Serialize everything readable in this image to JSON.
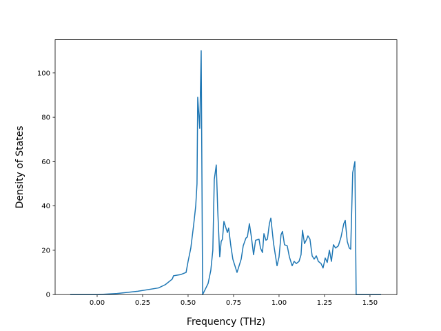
{
  "chart_data": {
    "type": "line",
    "xlabel": "Frequency (THz)",
    "ylabel": "Density of States",
    "x": [
      -0.148,
      0,
      0.11,
      0.223,
      0.337,
      0.375,
      0.413,
      0.42,
      0.458,
      0.489,
      0.5,
      0.515,
      0.53,
      0.542,
      0.549,
      0.553,
      0.564,
      0.572,
      0.58,
      0.595,
      0.61,
      0.625,
      0.636,
      0.644,
      0.655,
      0.663,
      0.674,
      0.682,
      0.689,
      0.697,
      0.716,
      0.723,
      0.735,
      0.746,
      0.769,
      0.792,
      0.803,
      0.818,
      0.826,
      0.837,
      0.848,
      0.86,
      0.871,
      0.89,
      0.898,
      0.909,
      0.917,
      0.928,
      0.936,
      0.947,
      0.955,
      0.97,
      0.989,
      1.0,
      1.011,
      1.019,
      1.03,
      1.045,
      1.057,
      1.072,
      1.083,
      1.095,
      1.11,
      1.121,
      1.129,
      1.14,
      1.152,
      1.159,
      1.17,
      1.182,
      1.193,
      1.205,
      1.216,
      1.231,
      1.242,
      1.254,
      1.265,
      1.277,
      1.288,
      1.299,
      1.311,
      1.326,
      1.341,
      1.356,
      1.364,
      1.375,
      1.386,
      1.394,
      1.405,
      1.417,
      1.424,
      1.561
    ],
    "series": [
      {
        "color": "#1f77b4",
        "values": [
          0,
          0,
          0.5,
          1.5,
          3,
          4.5,
          7,
          8.5,
          9,
          10,
          15,
          21,
          31,
          40,
          50,
          89,
          75,
          110,
          0,
          2.5,
          5,
          11,
          20,
          52,
          58.5,
          38,
          17,
          24,
          25,
          33,
          28,
          30,
          22,
          16,
          10,
          16,
          22,
          25.5,
          26,
          32,
          26,
          18,
          24.5,
          25,
          21,
          19,
          27.5,
          24.5,
          25,
          32,
          34.5,
          23,
          13,
          17,
          27,
          28.5,
          22.5,
          22,
          17,
          13,
          15,
          14,
          15,
          18,
          29,
          23,
          25,
          26.5,
          25,
          17.5,
          16,
          17.5,
          15,
          14,
          12,
          16.5,
          14.5,
          20,
          15,
          22.5,
          21,
          22,
          26,
          32,
          33.5,
          24,
          21,
          20.5,
          55,
          60,
          0,
          0
        ]
      }
    ],
    "xlim": [
      -0.231,
      1.648
    ],
    "ylim": [
      0,
      115
    ],
    "xticks": [
      {
        "value": 0,
        "label": "0.00"
      },
      {
        "value": 0.25,
        "label": "0.25"
      },
      {
        "value": 0.5,
        "label": "0.50"
      },
      {
        "value": 0.75,
        "label": "0.75"
      },
      {
        "value": 1,
        "label": "1.00"
      },
      {
        "value": 1.25,
        "label": "1.25"
      },
      {
        "value": 1.5,
        "label": "1.50"
      }
    ],
    "yticks": [
      0,
      20,
      40,
      60,
      80,
      100
    ]
  }
}
